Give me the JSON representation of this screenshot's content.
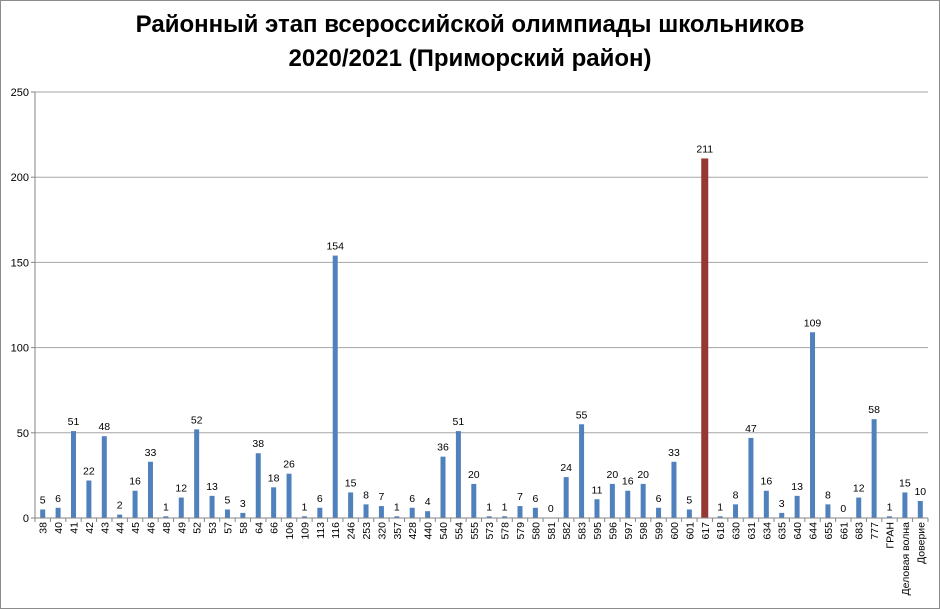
{
  "chart_data": {
    "type": "bar",
    "title": [
      "Районный этап всероссийской олимпиады школьников",
      "2020/2021 (Приморский район)"
    ],
    "xlabel": "",
    "ylabel": "",
    "ylim": [
      0,
      250
    ],
    "yticks": [
      0,
      50,
      100,
      150,
      200,
      250
    ],
    "grid": true,
    "legend": "none",
    "colors": {
      "default": "#4f81bd",
      "highlight": "#953735",
      "grid": "#a6a6a6"
    },
    "highlight_category": "617",
    "categories": [
      "38",
      "40",
      "41",
      "42",
      "43",
      "44",
      "45",
      "46",
      "48",
      "49",
      "52",
      "53",
      "57",
      "58",
      "64",
      "66",
      "106",
      "109",
      "113",
      "116",
      "246",
      "253",
      "320",
      "357",
      "428",
      "440",
      "540",
      "554",
      "555",
      "573",
      "578",
      "579",
      "580",
      "581",
      "582",
      "583",
      "595",
      "596",
      "597",
      "598",
      "599",
      "600",
      "601",
      "617",
      "618",
      "630",
      "631",
      "634",
      "635",
      "640",
      "644",
      "655",
      "661",
      "683",
      "777",
      "ГРАН",
      "Деловая волна",
      "Доверие"
    ],
    "values": [
      5,
      6,
      51,
      22,
      48,
      2,
      16,
      33,
      1,
      12,
      52,
      13,
      5,
      3,
      38,
      18,
      26,
      1,
      6,
      154,
      15,
      8,
      7,
      1,
      6,
      4,
      36,
      51,
      20,
      1,
      1,
      7,
      6,
      0,
      24,
      55,
      11,
      20,
      16,
      20,
      6,
      33,
      5,
      211,
      1,
      8,
      47,
      16,
      3,
      13,
      109,
      8,
      0,
      12,
      58,
      1,
      15,
      10
    ]
  }
}
